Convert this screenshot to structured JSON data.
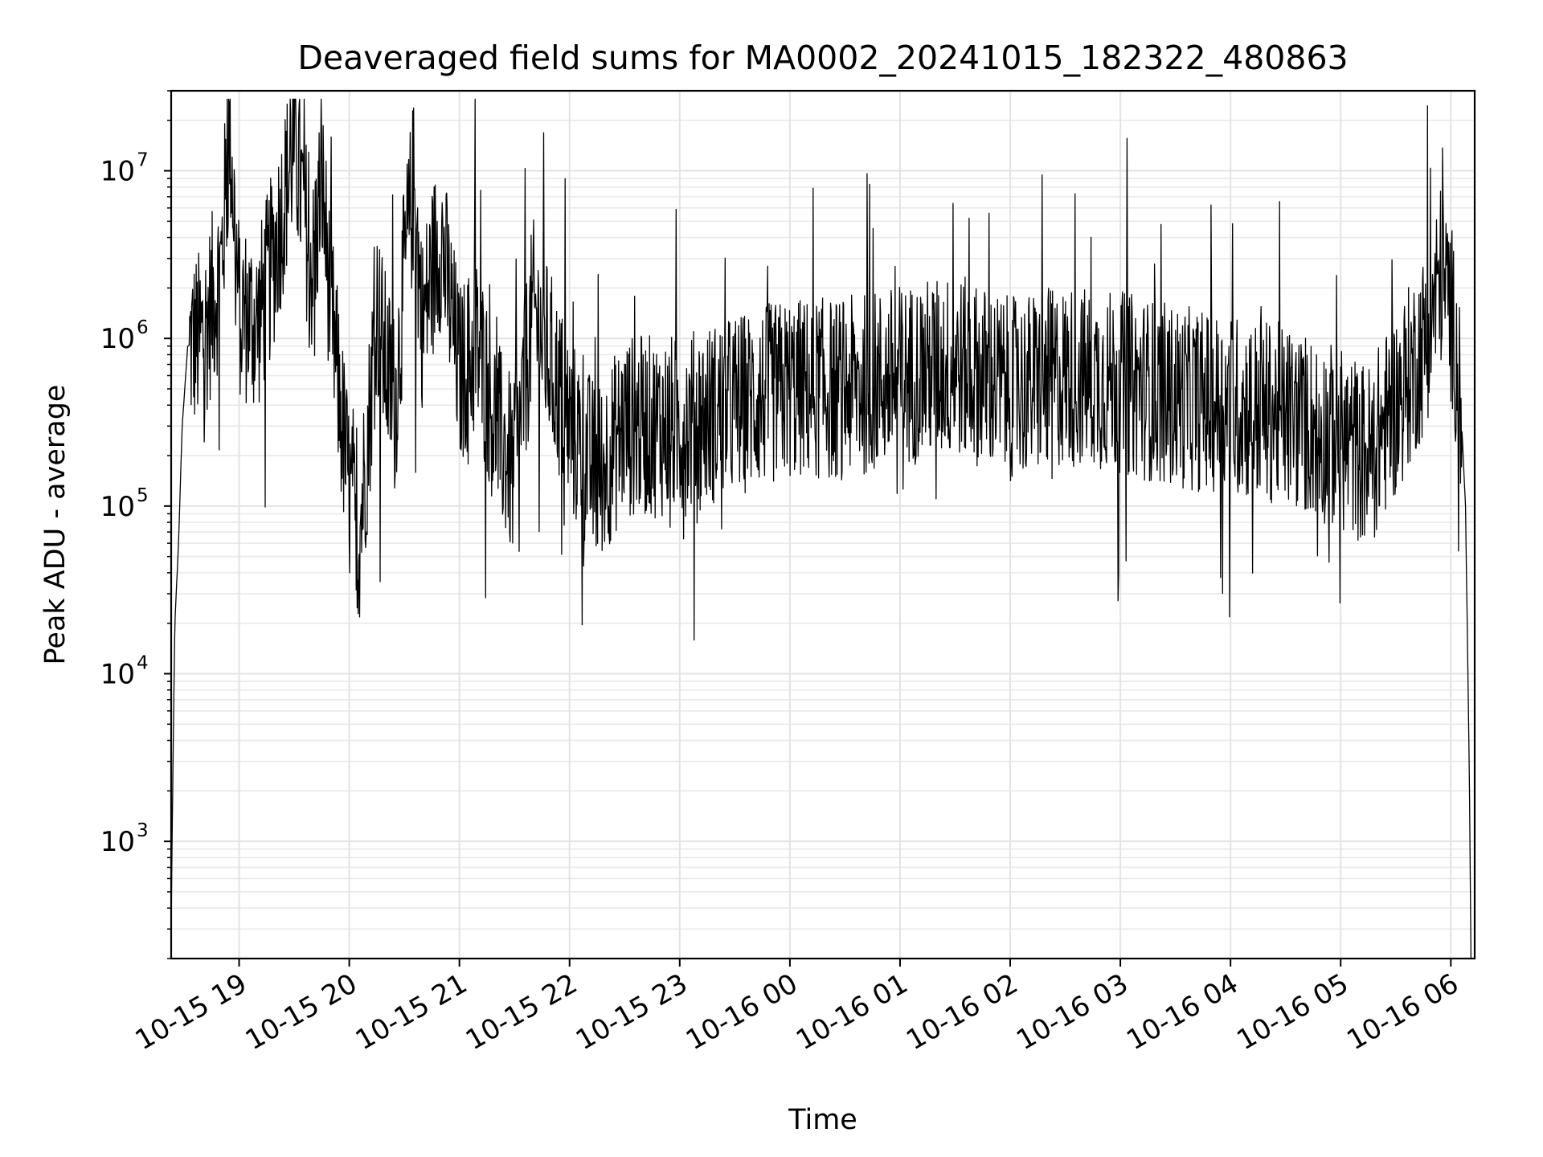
{
  "chart_data": {
    "type": "line",
    "title": "Deaveraged field sums for MA0002_20241015_182322_480863",
    "xlabel": "Time",
    "ylabel": "Peak ADU - average",
    "yscale": "log",
    "ylim": [
      200,
      30000000
    ],
    "xlim": [
      "2024-10-15 18:23",
      "2024-10-16 06:13"
    ],
    "grid": true,
    "x_ticks": [
      {
        "at": "2024-10-15 19:00",
        "label": "10-15 19"
      },
      {
        "at": "2024-10-15 20:00",
        "label": "10-15 20"
      },
      {
        "at": "2024-10-15 21:00",
        "label": "10-15 21"
      },
      {
        "at": "2024-10-15 22:00",
        "label": "10-15 22"
      },
      {
        "at": "2024-10-15 23:00",
        "label": "10-15 23"
      },
      {
        "at": "2024-10-16 00:00",
        "label": "10-16 00"
      },
      {
        "at": "2024-10-16 01:00",
        "label": "10-16 01"
      },
      {
        "at": "2024-10-16 02:00",
        "label": "10-16 02"
      },
      {
        "at": "2024-10-16 03:00",
        "label": "10-16 03"
      },
      {
        "at": "2024-10-16 04:00",
        "label": "10-16 04"
      },
      {
        "at": "2024-10-16 05:00",
        "label": "10-16 05"
      },
      {
        "at": "2024-10-16 06:00",
        "label": "10-16 06"
      }
    ],
    "y_ticks": [
      {
        "value": 1000,
        "base": "10",
        "exp": "3"
      },
      {
        "value": 10000,
        "base": "10",
        "exp": "4"
      },
      {
        "value": 100000,
        "base": "10",
        "exp": "5"
      },
      {
        "value": 1000000,
        "base": "10",
        "exp": "6"
      },
      {
        "value": 10000000,
        "base": "10",
        "exp": "7"
      }
    ],
    "series": [
      {
        "line_color": "#000000",
        "points": [
          [
            "2024-10-15 18:23",
            300
          ],
          [
            "2024-10-15 18:24",
            3000
          ],
          [
            "2024-10-15 18:25",
            20000
          ],
          [
            "2024-10-15 18:27",
            60000
          ],
          [
            "2024-10-15 18:29",
            300000
          ],
          [
            "2024-10-15 18:32",
            900000
          ],
          [
            "2024-10-15 18:40",
            1000000
          ],
          [
            "2024-10-15 18:50",
            2500000
          ],
          [
            "2024-10-15 18:55",
            18000000
          ],
          [
            "2024-10-15 19:00",
            1500000
          ],
          [
            "2024-10-15 19:10",
            1200000
          ],
          [
            "2024-10-15 19:20",
            3500000
          ],
          [
            "2024-10-15 19:30",
            15000000
          ],
          [
            "2024-10-15 19:40",
            2500000
          ],
          [
            "2024-10-15 19:45",
            9000000
          ],
          [
            "2024-10-15 19:50",
            1500000
          ],
          [
            "2024-10-15 19:55",
            400000
          ],
          [
            "2024-10-15 20:00",
            120000
          ],
          [
            "2024-10-15 20:05",
            60000
          ],
          [
            "2024-10-15 20:10",
            250000
          ],
          [
            "2024-10-15 20:15",
            1500000
          ],
          [
            "2024-10-15 20:20",
            700000
          ],
          [
            "2024-10-15 20:25",
            400000
          ],
          [
            "2024-10-15 20:30",
            2500000
          ],
          [
            "2024-10-15 20:35",
            8000000
          ],
          [
            "2024-10-15 20:40",
            1200000
          ],
          [
            "2024-10-15 20:45",
            2500000
          ],
          [
            "2024-10-15 20:50",
            4000000
          ],
          [
            "2024-10-15 21:00",
            600000
          ],
          [
            "2024-10-15 21:10",
            900000
          ],
          [
            "2024-10-15 21:20",
            300000
          ],
          [
            "2024-10-15 21:30",
            150000
          ],
          [
            "2024-10-15 21:40",
            1500000
          ],
          [
            "2024-10-15 21:50",
            700000
          ],
          [
            "2024-10-15 22:00",
            300000
          ],
          [
            "2024-10-15 22:15",
            150000
          ],
          [
            "2024-10-15 22:30",
            300000
          ],
          [
            "2024-10-15 23:00",
            300000
          ],
          [
            "2024-10-15 23:30",
            400000
          ],
          [
            "2024-10-16 00:00",
            500000
          ],
          [
            "2024-10-16 00:30",
            500000
          ],
          [
            "2024-10-16 01:00",
            600000
          ],
          [
            "2024-10-16 01:30",
            700000
          ],
          [
            "2024-10-16 02:00",
            500000
          ],
          [
            "2024-10-16 02:30",
            600000
          ],
          [
            "2024-10-16 03:00",
            550000
          ],
          [
            "2024-10-16 03:30",
            450000
          ],
          [
            "2024-10-16 04:00",
            400000
          ],
          [
            "2024-10-16 04:30",
            350000
          ],
          [
            "2024-10-16 05:00",
            250000
          ],
          [
            "2024-10-16 05:15",
            200000
          ],
          [
            "2024-10-16 05:30",
            400000
          ],
          [
            "2024-10-16 05:45",
            900000
          ],
          [
            "2024-10-16 05:55",
            2500000
          ],
          [
            "2024-10-16 06:00",
            1500000
          ],
          [
            "2024-10-16 06:05",
            500000
          ],
          [
            "2024-10-16 06:08",
            100000
          ],
          [
            "2024-10-16 06:10",
            3000
          ],
          [
            "2024-10-16 06:11",
            200
          ]
        ]
      }
    ]
  }
}
